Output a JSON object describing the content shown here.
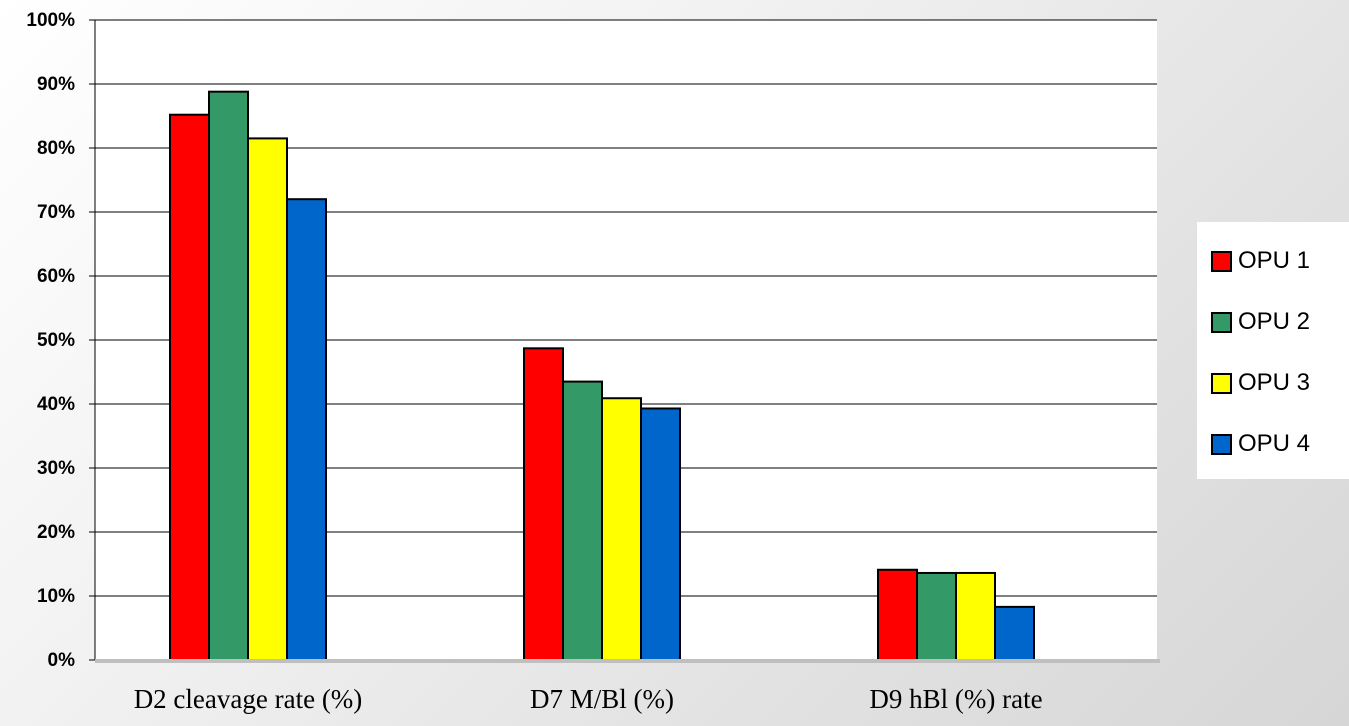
{
  "chart_data": {
    "type": "bar",
    "categories": [
      "D2 cleavage rate (%)",
      "D7 M/Bl (%)",
      "D9 hBl (%) rate"
    ],
    "series": [
      {
        "name": "OPU 1",
        "color": "#ff0000",
        "values": [
          85.2,
          48.7,
          14.1
        ]
      },
      {
        "name": "OPU 2",
        "color": "#339966",
        "values": [
          88.8,
          43.5,
          13.6
        ]
      },
      {
        "name": "OPU 3",
        "color": "#ffff00",
        "values": [
          81.5,
          40.9,
          13.6
        ]
      },
      {
        "name": "OPU 4",
        "color": "#0066cc",
        "values": [
          72.0,
          39.3,
          8.3
        ]
      }
    ],
    "yticks": [
      "0%",
      "10%",
      "20%",
      "30%",
      "40%",
      "50%",
      "60%",
      "70%",
      "80%",
      "90%",
      "100%"
    ],
    "ylim": [
      0,
      100
    ],
    "grid": true,
    "legend_position": "right",
    "title": "",
    "xlabel": "",
    "ylabel": ""
  }
}
